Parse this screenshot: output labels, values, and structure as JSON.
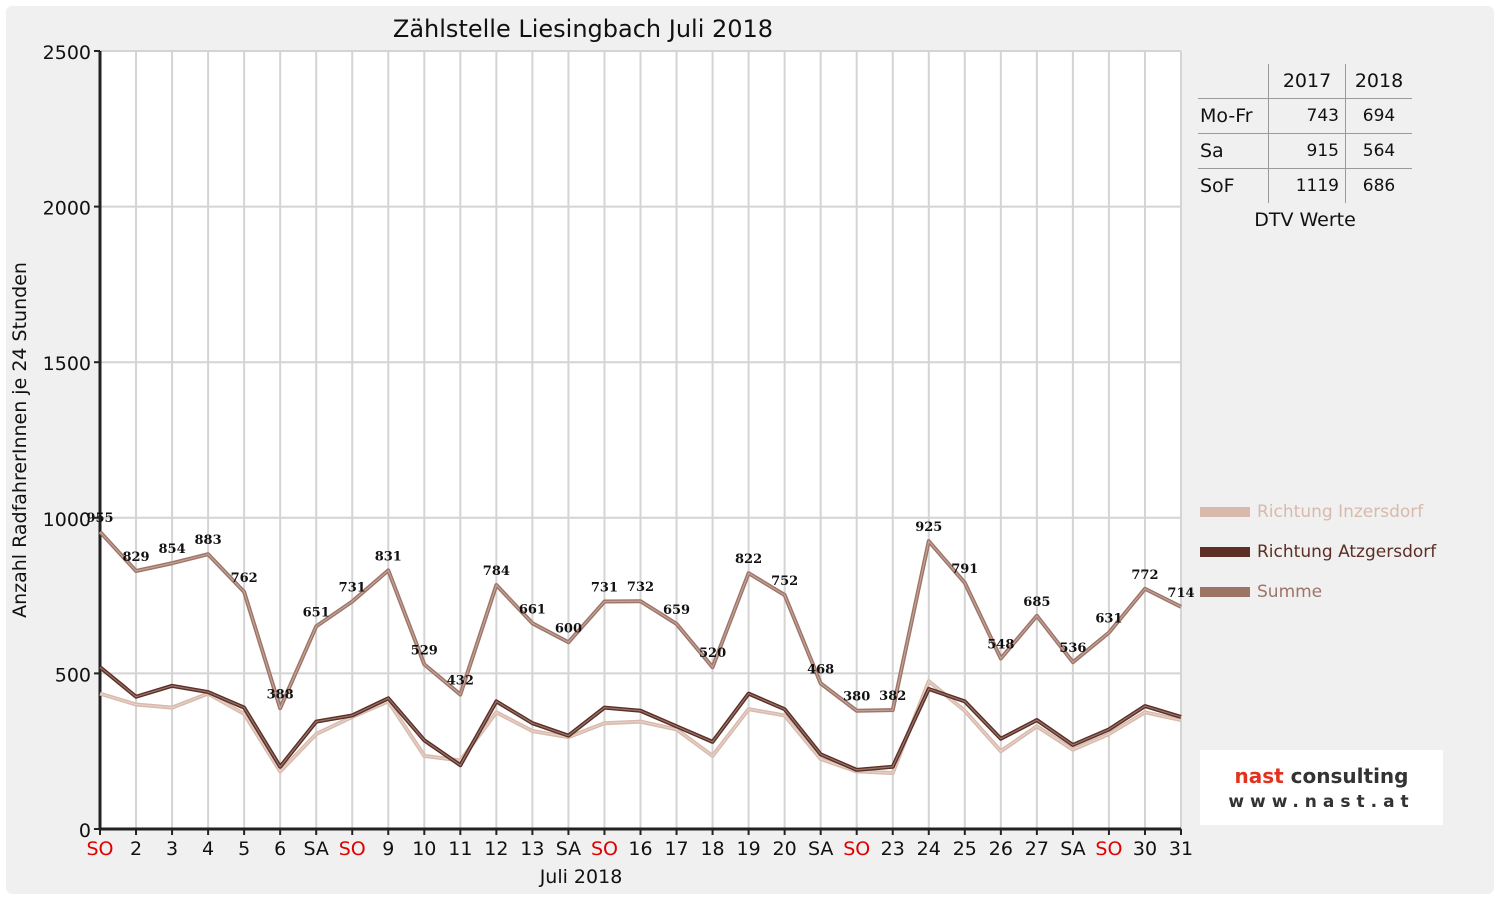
{
  "chart_data": {
    "type": "line",
    "title": "Zählstelle Liesingbach Juli 2018",
    "xlabel": "Juli 2018",
    "ylabel": "Anzahl RadfahrerInnen je 24 Stunden",
    "ylim": [
      0,
      2500
    ],
    "yticks": [
      0,
      500,
      1000,
      1500,
      2000,
      2500
    ],
    "grid": true,
    "categories": [
      "SO",
      "2",
      "3",
      "4",
      "5",
      "6",
      "SA",
      "SO",
      "9",
      "10",
      "11",
      "12",
      "13",
      "SA",
      "SO",
      "16",
      "17",
      "18",
      "19",
      "20",
      "SA",
      "SO",
      "23",
      "24",
      "25",
      "26",
      "27",
      "SA",
      "SO",
      "30",
      "31"
    ],
    "sunday_flags": [
      true,
      false,
      false,
      false,
      false,
      false,
      false,
      true,
      false,
      false,
      false,
      false,
      false,
      false,
      true,
      false,
      false,
      false,
      false,
      false,
      false,
      true,
      false,
      false,
      false,
      false,
      false,
      false,
      true,
      false,
      false
    ],
    "sunday_color": "#e00000",
    "series": [
      {
        "name": "Richtung Inzersdorf",
        "color": "#d8b9ac",
        "values": [
          435,
          400,
          390,
          435,
          370,
          185,
          305,
          360,
          410,
          235,
          220,
          375,
          315,
          295,
          340,
          345,
          320,
          235,
          385,
          365,
          225,
          185,
          180,
          475,
          380,
          250,
          330,
          255,
          305,
          375,
          350
        ]
      },
      {
        "name": "Richtung Atzgersdorf",
        "color": "#5c2e24",
        "values": [
          520,
          425,
          460,
          440,
          390,
          200,
          345,
          365,
          420,
          285,
          205,
          410,
          340,
          300,
          390,
          380,
          330,
          280,
          435,
          385,
          240,
          190,
          200,
          450,
          410,
          290,
          350,
          270,
          320,
          395,
          360
        ]
      },
      {
        "name": "Summe",
        "color": "#9e7466",
        "values": [
          955,
          829,
          854,
          883,
          762,
          388,
          651,
          731,
          831,
          529,
          432,
          784,
          661,
          600,
          731,
          732,
          659,
          520,
          822,
          752,
          468,
          380,
          382,
          925,
          791,
          548,
          685,
          536,
          631,
          772,
          714
        ]
      }
    ],
    "data_labels_series": "Summe"
  },
  "dtv_table": {
    "headers": [
      "",
      "2017",
      "2018"
    ],
    "rows": [
      {
        "label": "Mo-Fr",
        "v2017": "743",
        "v2018": "694"
      },
      {
        "label": "Sa",
        "v2017": "915",
        "v2018": "564"
      },
      {
        "label": "SoF",
        "v2017": "1119",
        "v2018": "686"
      }
    ],
    "caption": "DTV Werte"
  },
  "logo": {
    "line1_a": "nast",
    "line1_b": "consulting",
    "line2": "www.nast.at"
  }
}
